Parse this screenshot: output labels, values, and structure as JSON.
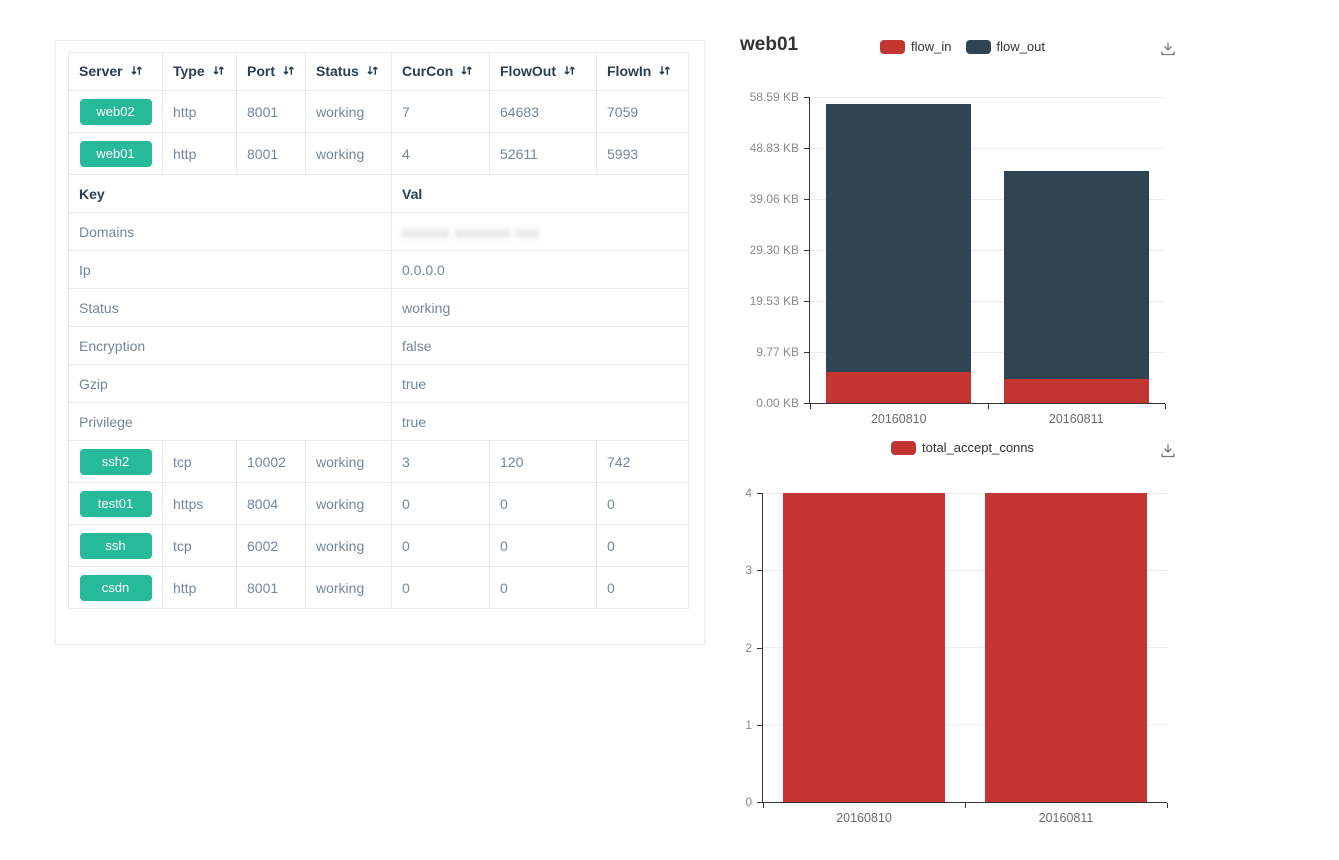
{
  "colors": {
    "badge_green": "#26b99a",
    "flow_in_red": "#c23531",
    "flow_out_dark": "#2f4554",
    "header_text": "#2a3f54",
    "cell_text": "#73879c"
  },
  "table": {
    "headers": [
      "Server",
      "Type",
      "Port",
      "Status",
      "CurCon",
      "FlowOut",
      "FlowIn"
    ],
    "rows_top": [
      {
        "server": "web02",
        "type": "http",
        "port": "8001",
        "status": "working",
        "curcon": "7",
        "flowout": "64683",
        "flowin": "7059"
      },
      {
        "server": "web01",
        "type": "http",
        "port": "8001",
        "status": "working",
        "curcon": "4",
        "flowout": "52611",
        "flowin": "5993"
      }
    ],
    "kv_header": {
      "key": "Key",
      "val": "Val"
    },
    "kv_rows": [
      {
        "key": "Domains",
        "val": "xxxxxx xxxxxxx xxx",
        "redacted": true
      },
      {
        "key": "Ip",
        "val": "0.0.0.0"
      },
      {
        "key": "Status",
        "val": "working"
      },
      {
        "key": "Encryption",
        "val": "false"
      },
      {
        "key": "Gzip",
        "val": "true"
      },
      {
        "key": "Privilege",
        "val": "true"
      }
    ],
    "rows_bottom": [
      {
        "server": "ssh2",
        "type": "tcp",
        "port": "10002",
        "status": "working",
        "curcon": "3",
        "flowout": "120",
        "flowin": "742"
      },
      {
        "server": "test01",
        "type": "https",
        "port": "8004",
        "status": "working",
        "curcon": "0",
        "flowout": "0",
        "flowin": "0"
      },
      {
        "server": "ssh",
        "type": "tcp",
        "port": "6002",
        "status": "working",
        "curcon": "0",
        "flowout": "0",
        "flowin": "0"
      },
      {
        "server": "csdn",
        "type": "http",
        "port": "8001",
        "status": "working",
        "curcon": "0",
        "flowout": "0",
        "flowin": "0"
      }
    ]
  },
  "chart_data": [
    {
      "type": "bar",
      "title": "web01",
      "stacked": true,
      "categories": [
        "20160810",
        "20160811"
      ],
      "series": [
        {
          "name": "flow_in",
          "color": "#c23531",
          "values": [
            5.85,
            4.65
          ]
        },
        {
          "name": "flow_out",
          "color": "#2f4554",
          "values": [
            51.38,
            39.75
          ]
        }
      ],
      "unit": "KB",
      "ymax": 58.59,
      "yticks": [
        "0.00 KB",
        "9.77 KB",
        "19.53 KB",
        "29.30 KB",
        "39.06 KB",
        "48.83 KB",
        "58.59 KB"
      ],
      "legend_position": "top-center",
      "grid": true,
      "toolbox": "save-as-image"
    },
    {
      "type": "bar",
      "title": "",
      "stacked": false,
      "categories": [
        "20160810",
        "20160811"
      ],
      "series": [
        {
          "name": "total_accept_conns",
          "color": "#c23531",
          "values": [
            4,
            4
          ]
        }
      ],
      "unit": "",
      "ymax": 4,
      "yticks": [
        "0",
        "1",
        "2",
        "3",
        "4"
      ],
      "legend_position": "top-center",
      "grid": true,
      "toolbox": "save-as-image"
    }
  ]
}
